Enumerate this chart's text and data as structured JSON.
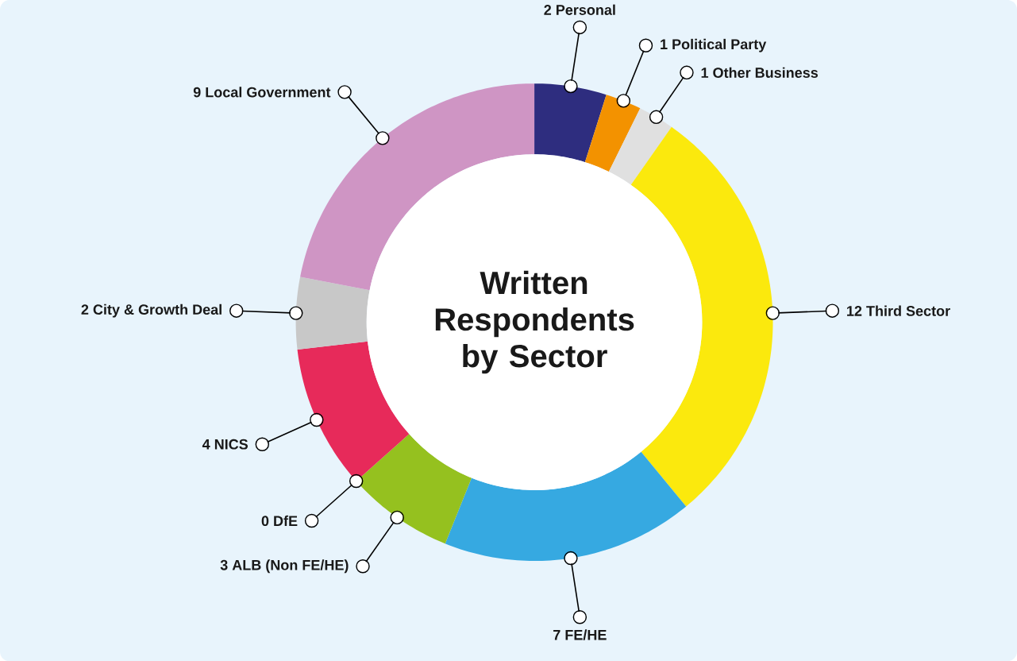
{
  "chart_data": {
    "type": "donut",
    "title": "Written Respondents by Sector",
    "categories": [
      "Personal",
      "Political Party",
      "Other Business",
      "Third Sector",
      "FE/HE",
      "ALB (Non FE/HE)",
      "DfE",
      "NICS",
      "City & Growth Deal",
      "Local Government"
    ],
    "values": [
      2,
      1,
      1,
      12,
      7,
      3,
      0,
      4,
      2,
      9
    ],
    "colors": [
      "#2e2d7f",
      "#f39200",
      "#e0e0e0",
      "#fbe90d",
      "#36a9e1",
      "#95c11f",
      "#e6007e",
      "#e72a5a",
      "#c8c8c8",
      "#cf95c4"
    ],
    "value_labels": [
      "2",
      "1",
      "1",
      "12",
      "7",
      "3",
      "0",
      "4",
      "2",
      "9"
    ]
  }
}
